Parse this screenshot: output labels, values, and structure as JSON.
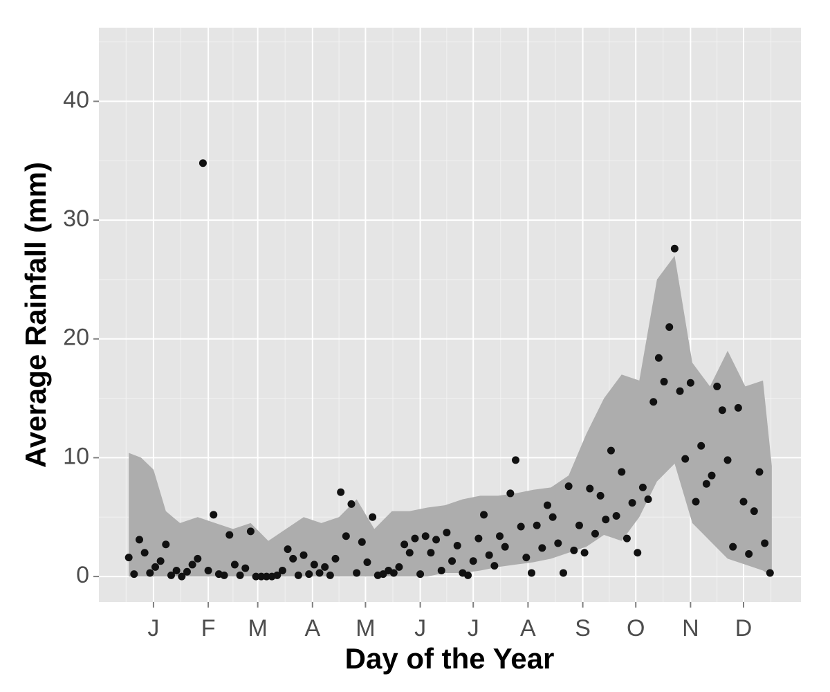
{
  "chart_data": {
    "type": "scatter",
    "x_label": "Day of the Year",
    "y_label": "Average Rainfall (mm)",
    "xlim": [
      -15.9,
      381.5
    ],
    "ylim": [
      -2.15,
      46.2
    ],
    "xticks": [
      {
        "value": 15,
        "label": "J"
      },
      {
        "value": 46,
        "label": "F"
      },
      {
        "value": 74,
        "label": "M"
      },
      {
        "value": 105,
        "label": "A"
      },
      {
        "value": 135,
        "label": "M"
      },
      {
        "value": 166,
        "label": "J"
      },
      {
        "value": 196,
        "label": "J"
      },
      {
        "value": 227,
        "label": "A"
      },
      {
        "value": 258,
        "label": "S"
      },
      {
        "value": 288,
        "label": "O"
      },
      {
        "value": 319,
        "label": "N"
      },
      {
        "value": 349,
        "label": "D"
      }
    ],
    "xminor_ticks": [
      -0.5,
      30.5,
      60,
      89.5,
      120,
      150.5,
      181,
      211.5,
      242.5,
      273,
      303.5,
      334,
      364.5
    ],
    "yticks": [
      0,
      10,
      20,
      30,
      40
    ],
    "yminor_ticks": [
      5,
      15,
      25,
      35,
      45
    ],
    "grid": true,
    "color": "#111111",
    "ribbon_color": "#adadad",
    "x": [
      1,
      4,
      7,
      10,
      13,
      16,
      19,
      22,
      25,
      28,
      31,
      34,
      37,
      40,
      43,
      46,
      49,
      52,
      55,
      58,
      61,
      64,
      67,
      70,
      73,
      76,
      79,
      82,
      85,
      88,
      91,
      94,
      97,
      100,
      103,
      106,
      109,
      112,
      115,
      118,
      121,
      124,
      127,
      130,
      133,
      136,
      139,
      142,
      145,
      148,
      151,
      154,
      157,
      160,
      163,
      166,
      169,
      172,
      175,
      178,
      181,
      184,
      187,
      190,
      193,
      196,
      199,
      202,
      205,
      208,
      211,
      214,
      217,
      220,
      223,
      226,
      229,
      232,
      235,
      238,
      241,
      244,
      247,
      250,
      253,
      256,
      259,
      262,
      265,
      268,
      271,
      274,
      277,
      280,
      283,
      286,
      289,
      292,
      295,
      298,
      301,
      304,
      307,
      310,
      313,
      316,
      319,
      322,
      325,
      328,
      331,
      334,
      337,
      340,
      343,
      346,
      349,
      352,
      355,
      358,
      361,
      364
    ],
    "values": [
      1.6,
      0.2,
      3.1,
      2.0,
      0.3,
      0.8,
      1.3,
      2.7,
      0.1,
      0.5,
      0.0,
      0.4,
      1.0,
      1.5,
      34.8,
      0.5,
      5.2,
      0.2,
      0.1,
      3.5,
      1.0,
      0.1,
      0.7,
      3.8,
      0.0,
      0.0,
      0.0,
      0.0,
      0.1,
      0.5,
      2.3,
      1.5,
      0.1,
      1.8,
      0.2,
      1.0,
      0.3,
      0.8,
      0.1,
      1.5,
      7.1,
      3.4,
      6.1,
      0.3,
      2.9,
      1.2,
      5.0,
      0.1,
      0.2,
      0.5,
      0.3,
      0.8,
      2.7,
      2.0,
      3.2,
      0.2,
      3.4,
      2.0,
      3.1,
      0.5,
      3.7,
      1.3,
      2.6,
      0.3,
      0.1,
      1.3,
      3.2,
      5.2,
      1.8,
      0.9,
      3.4,
      2.5,
      7.0,
      9.8,
      4.2,
      1.6,
      0.3,
      4.3,
      2.4,
      6.0,
      5.0,
      2.8,
      0.3,
      7.6,
      2.2,
      4.3,
      2.0,
      7.4,
      3.6,
      6.8,
      4.8,
      10.6,
      5.1,
      8.8,
      3.2,
      6.2,
      2.0,
      7.5,
      6.5,
      14.7,
      18.4,
      16.4,
      21.0,
      27.6,
      15.6,
      9.9,
      16.3,
      6.3,
      11.0,
      7.8,
      8.5,
      16.0,
      14.0,
      9.8,
      2.5,
      14.2,
      6.3,
      1.9,
      5.5,
      8.8,
      2.8,
      0.3
    ],
    "ribbon": {
      "x": [
        1,
        8,
        15,
        22,
        30,
        40,
        50,
        60,
        70,
        80,
        90,
        100,
        110,
        120,
        130,
        140,
        150,
        160,
        170,
        180,
        190,
        200,
        210,
        220,
        230,
        240,
        250,
        260,
        270,
        280,
        290,
        300,
        310,
        320,
        330,
        340,
        350,
        360,
        365
      ],
      "upper": [
        10.4,
        10.0,
        9.0,
        5.5,
        4.5,
        5.0,
        4.5,
        4.0,
        4.5,
        3.0,
        4.0,
        5.0,
        4.5,
        5.0,
        6.5,
        4.0,
        5.5,
        5.5,
        5.8,
        6.0,
        6.5,
        6.8,
        6.8,
        7.0,
        7.3,
        7.5,
        8.5,
        12.0,
        15.0,
        17.0,
        16.5,
        25.0,
        27.0,
        18.0,
        16.0,
        19.0,
        16.0,
        16.5,
        9.3
      ],
      "lower": [
        0,
        0,
        0,
        0,
        0,
        0,
        0,
        0,
        0,
        0,
        0,
        0,
        0,
        0,
        0,
        0,
        0,
        0,
        0,
        0.3,
        0.3,
        0.5,
        0.8,
        1.0,
        1.2,
        1.5,
        2.0,
        2.5,
        3.5,
        3.0,
        5.0,
        8.0,
        9.5,
        4.5,
        3.0,
        1.5,
        1.0,
        0.5,
        0
      ]
    }
  }
}
